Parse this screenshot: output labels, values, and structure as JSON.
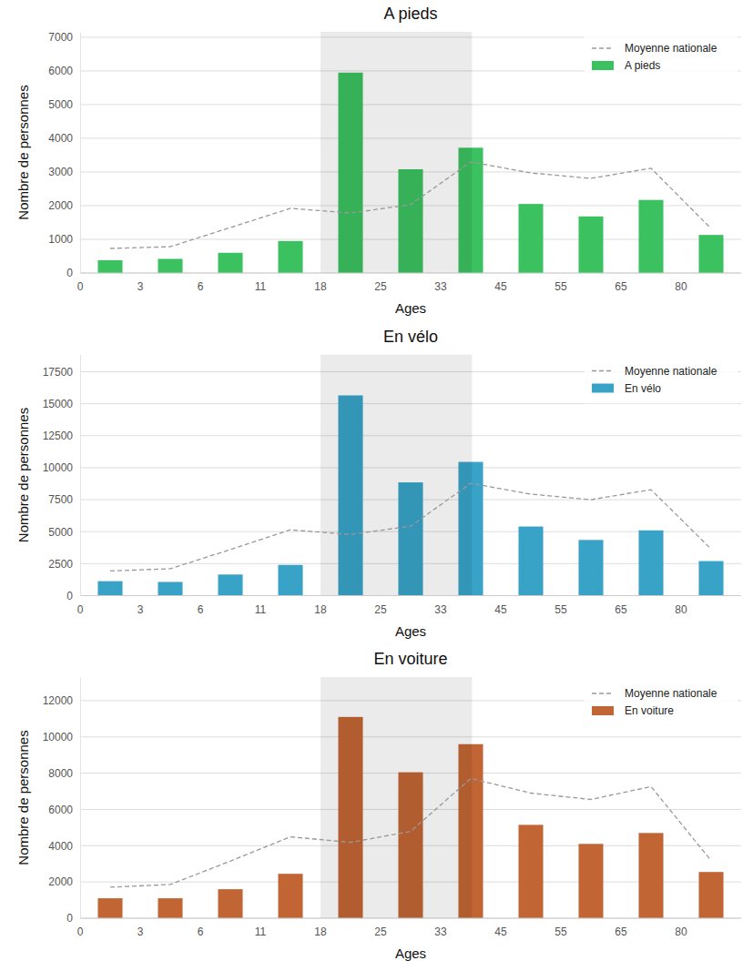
{
  "chart_data": [
    {
      "type": "bar",
      "title": "A pieds",
      "x_label": "Ages",
      "y_label": "Nombre de personnes",
      "categories": [
        "0",
        "3",
        "6",
        "11",
        "18",
        "25",
        "33",
        "45",
        "55",
        "65",
        "80"
      ],
      "series": [
        {
          "name": "A pieds",
          "color": "#3bc160",
          "values": [
            380,
            420,
            600,
            950,
            5950,
            3080,
            3720,
            2050,
            1680,
            2170,
            1130
          ]
        },
        {
          "name": "Moyenne nationale",
          "type": "line",
          "line_style": "dashed",
          "color": "#999999",
          "values": [
            730,
            780,
            1350,
            1920,
            1780,
            2030,
            3300,
            2970,
            2810,
            3110,
            1320
          ]
        }
      ],
      "ylim": [
        0,
        7160
      ],
      "yticks": [
        0,
        1000,
        2000,
        3000,
        4000,
        5000,
        6000,
        7000
      ],
      "grid": true,
      "legend": "upper right"
    },
    {
      "type": "bar",
      "title": "En vélo",
      "x_label": "Ages",
      "y_label": "Nombre de personnes",
      "categories": [
        "0",
        "3",
        "6",
        "11",
        "18",
        "25",
        "33",
        "45",
        "55",
        "65",
        "80"
      ],
      "series": [
        {
          "name": "En vélo",
          "color": "#38a3c6",
          "values": [
            1130,
            1070,
            1650,
            2400,
            15650,
            8850,
            10450,
            5400,
            4350,
            5100,
            2700
          ]
        },
        {
          "name": "Moyenne nationale",
          "type": "line",
          "line_style": "dashed",
          "color": "#999999",
          "values": [
            1930,
            2100,
            3600,
            5140,
            4780,
            5430,
            8780,
            7930,
            7500,
            8280,
            3640
          ]
        }
      ],
      "ylim": [
        0,
        18850
      ],
      "yticks": [
        0,
        2500,
        5000,
        7500,
        10000,
        12500,
        15000,
        17500
      ],
      "grid": true,
      "legend": "upper right"
    },
    {
      "type": "bar",
      "title": "En voiture",
      "x_label": "Ages",
      "y_label": "Nombre de personnes",
      "categories": [
        "0",
        "3",
        "6",
        "11",
        "18",
        "25",
        "33",
        "45",
        "55",
        "65",
        "80"
      ],
      "series": [
        {
          "name": "En voiture",
          "color": "#c26535",
          "values": [
            1100,
            1100,
            1600,
            2450,
            11100,
            8050,
            9600,
            5150,
            4100,
            4700,
            2550
          ]
        },
        {
          "name": "Moyenne nationale",
          "type": "line",
          "line_style": "dashed",
          "color": "#999999",
          "values": [
            1710,
            1860,
            3150,
            4490,
            4180,
            4790,
            7710,
            6900,
            6550,
            7260,
            3180
          ]
        }
      ],
      "ylim": [
        0,
        13300
      ],
      "yticks": [
        0,
        2000,
        4000,
        6000,
        8000,
        10000,
        12000
      ],
      "grid": true,
      "legend": "upper right"
    }
  ]
}
